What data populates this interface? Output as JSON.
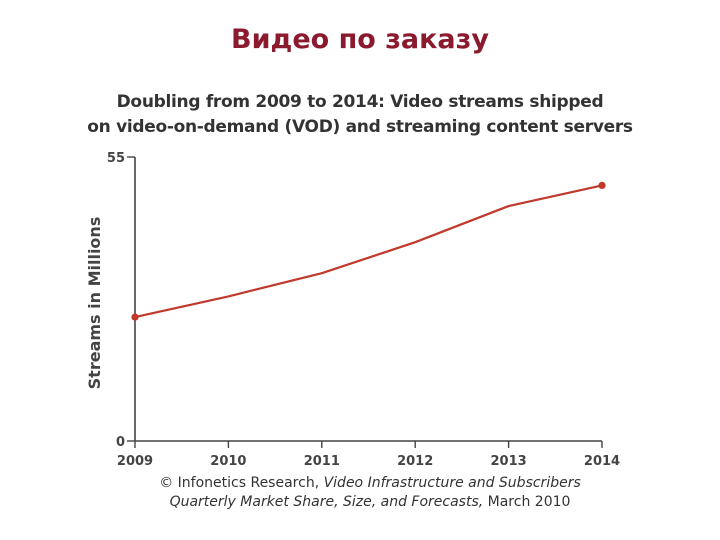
{
  "slide": {
    "title": "Видео по заказу",
    "title_color": "#8b1a2f"
  },
  "chart_data": {
    "type": "line",
    "title_lines": [
      "Doubling from 2009 to 2014: Video streams shipped",
      "on video-on-demand (VOD) and streaming content servers"
    ],
    "xlabel": "",
    "ylabel": "Streams in Millions",
    "x": [
      "2009",
      "2010",
      "2011",
      "2012",
      "2013",
      "2014"
    ],
    "series": [
      {
        "values": [
          24,
          28,
          32.5,
          38.5,
          45.5,
          49.5
        ],
        "color": "#c0392b"
      }
    ],
    "ylim": [
      0,
      55
    ],
    "yticks": [
      "0",
      "55"
    ],
    "grid": false,
    "markers_on": [
      "2009",
      "2014"
    ]
  },
  "source": {
    "line1_plain": "© Infonetics Research, ",
    "line1_italic": "Video Infrastructure and Subscribers",
    "line2_italic": "Quarterly Market Share, Size, and Forecasts,",
    "line2_plain": " March 2010"
  }
}
